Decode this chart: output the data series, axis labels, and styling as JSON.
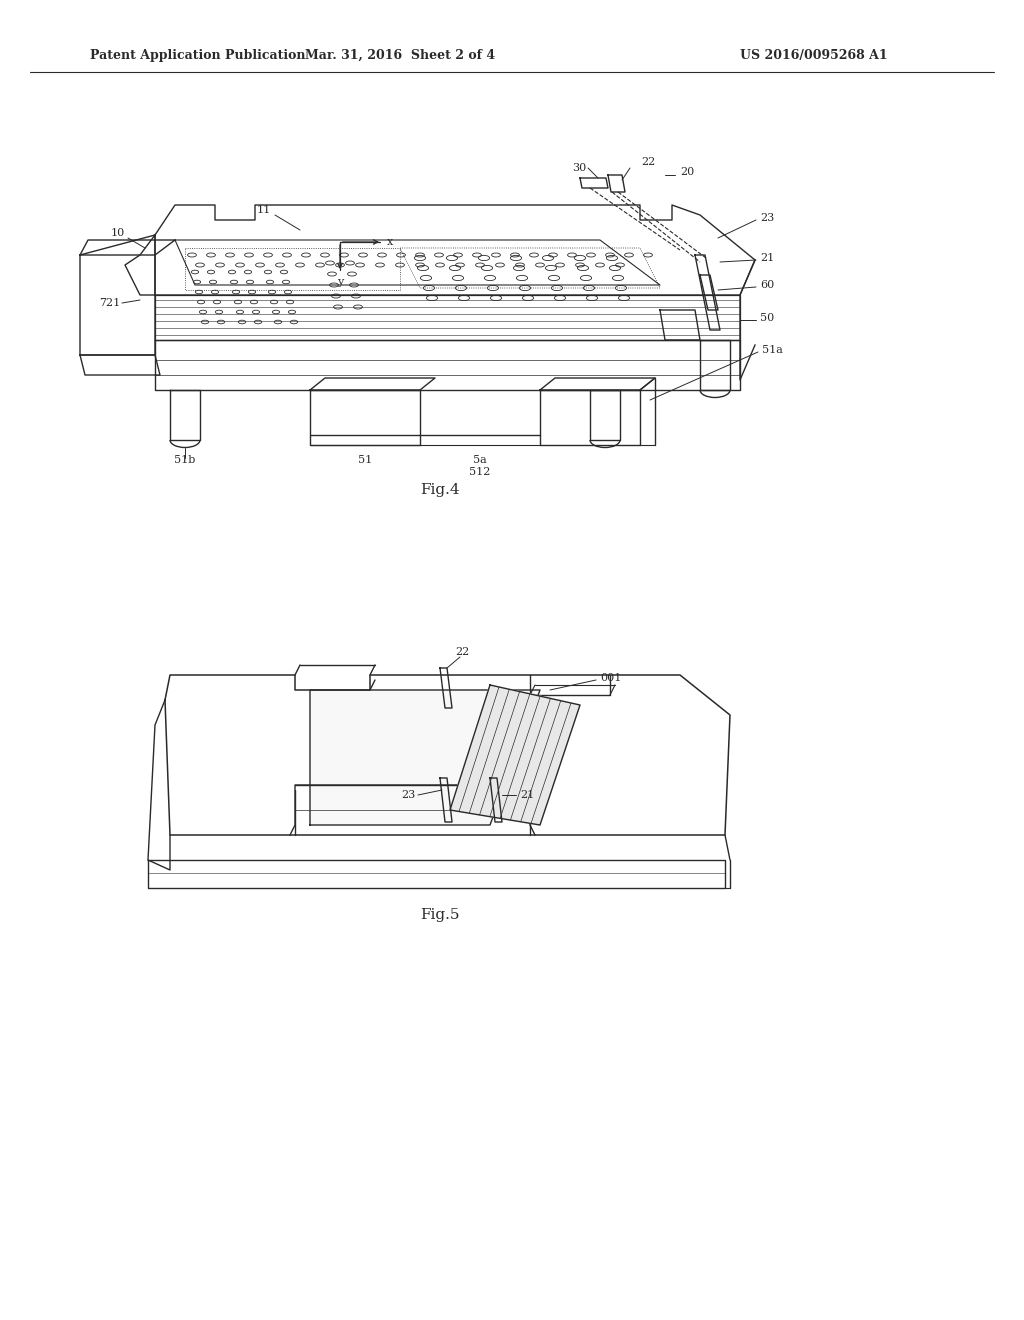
{
  "bg_color": "#ffffff",
  "line_color": "#2a2a2a",
  "header_left": "Patent Application Publication",
  "header_mid": "Mar. 31, 2016  Sheet 2 of 4",
  "header_right": "US 2016/0095268 A1",
  "fig4_caption": "Fig.4",
  "fig5_caption": "Fig.5",
  "font_size_header": 9,
  "font_size_label": 8,
  "font_size_caption": 10
}
